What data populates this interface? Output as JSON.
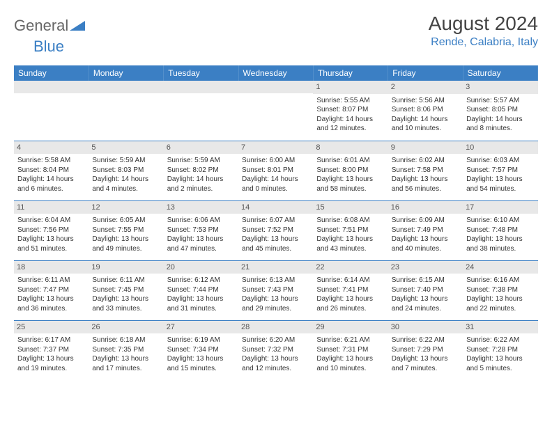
{
  "logo": {
    "part1": "General",
    "part2": "Blue"
  },
  "title": "August 2024",
  "location": "Rende, Calabria, Italy",
  "colors": {
    "header_bg": "#3b7fc4",
    "header_text": "#ffffff",
    "daynum_bg": "#e8e8e8",
    "border": "#3b7fc4",
    "logo_gray": "#666666",
    "logo_blue": "#3b7fc4"
  },
  "day_headers": [
    "Sunday",
    "Monday",
    "Tuesday",
    "Wednesday",
    "Thursday",
    "Friday",
    "Saturday"
  ],
  "weeks": [
    [
      {
        "n": "",
        "sr": "",
        "ss": "",
        "dl": ""
      },
      {
        "n": "",
        "sr": "",
        "ss": "",
        "dl": ""
      },
      {
        "n": "",
        "sr": "",
        "ss": "",
        "dl": ""
      },
      {
        "n": "",
        "sr": "",
        "ss": "",
        "dl": ""
      },
      {
        "n": "1",
        "sr": "Sunrise: 5:55 AM",
        "ss": "Sunset: 8:07 PM",
        "dl": "Daylight: 14 hours and 12 minutes."
      },
      {
        "n": "2",
        "sr": "Sunrise: 5:56 AM",
        "ss": "Sunset: 8:06 PM",
        "dl": "Daylight: 14 hours and 10 minutes."
      },
      {
        "n": "3",
        "sr": "Sunrise: 5:57 AM",
        "ss": "Sunset: 8:05 PM",
        "dl": "Daylight: 14 hours and 8 minutes."
      }
    ],
    [
      {
        "n": "4",
        "sr": "Sunrise: 5:58 AM",
        "ss": "Sunset: 8:04 PM",
        "dl": "Daylight: 14 hours and 6 minutes."
      },
      {
        "n": "5",
        "sr": "Sunrise: 5:59 AM",
        "ss": "Sunset: 8:03 PM",
        "dl": "Daylight: 14 hours and 4 minutes."
      },
      {
        "n": "6",
        "sr": "Sunrise: 5:59 AM",
        "ss": "Sunset: 8:02 PM",
        "dl": "Daylight: 14 hours and 2 minutes."
      },
      {
        "n": "7",
        "sr": "Sunrise: 6:00 AM",
        "ss": "Sunset: 8:01 PM",
        "dl": "Daylight: 14 hours and 0 minutes."
      },
      {
        "n": "8",
        "sr": "Sunrise: 6:01 AM",
        "ss": "Sunset: 8:00 PM",
        "dl": "Daylight: 13 hours and 58 minutes."
      },
      {
        "n": "9",
        "sr": "Sunrise: 6:02 AM",
        "ss": "Sunset: 7:58 PM",
        "dl": "Daylight: 13 hours and 56 minutes."
      },
      {
        "n": "10",
        "sr": "Sunrise: 6:03 AM",
        "ss": "Sunset: 7:57 PM",
        "dl": "Daylight: 13 hours and 54 minutes."
      }
    ],
    [
      {
        "n": "11",
        "sr": "Sunrise: 6:04 AM",
        "ss": "Sunset: 7:56 PM",
        "dl": "Daylight: 13 hours and 51 minutes."
      },
      {
        "n": "12",
        "sr": "Sunrise: 6:05 AM",
        "ss": "Sunset: 7:55 PM",
        "dl": "Daylight: 13 hours and 49 minutes."
      },
      {
        "n": "13",
        "sr": "Sunrise: 6:06 AM",
        "ss": "Sunset: 7:53 PM",
        "dl": "Daylight: 13 hours and 47 minutes."
      },
      {
        "n": "14",
        "sr": "Sunrise: 6:07 AM",
        "ss": "Sunset: 7:52 PM",
        "dl": "Daylight: 13 hours and 45 minutes."
      },
      {
        "n": "15",
        "sr": "Sunrise: 6:08 AM",
        "ss": "Sunset: 7:51 PM",
        "dl": "Daylight: 13 hours and 43 minutes."
      },
      {
        "n": "16",
        "sr": "Sunrise: 6:09 AM",
        "ss": "Sunset: 7:49 PM",
        "dl": "Daylight: 13 hours and 40 minutes."
      },
      {
        "n": "17",
        "sr": "Sunrise: 6:10 AM",
        "ss": "Sunset: 7:48 PM",
        "dl": "Daylight: 13 hours and 38 minutes."
      }
    ],
    [
      {
        "n": "18",
        "sr": "Sunrise: 6:11 AM",
        "ss": "Sunset: 7:47 PM",
        "dl": "Daylight: 13 hours and 36 minutes."
      },
      {
        "n": "19",
        "sr": "Sunrise: 6:11 AM",
        "ss": "Sunset: 7:45 PM",
        "dl": "Daylight: 13 hours and 33 minutes."
      },
      {
        "n": "20",
        "sr": "Sunrise: 6:12 AM",
        "ss": "Sunset: 7:44 PM",
        "dl": "Daylight: 13 hours and 31 minutes."
      },
      {
        "n": "21",
        "sr": "Sunrise: 6:13 AM",
        "ss": "Sunset: 7:43 PM",
        "dl": "Daylight: 13 hours and 29 minutes."
      },
      {
        "n": "22",
        "sr": "Sunrise: 6:14 AM",
        "ss": "Sunset: 7:41 PM",
        "dl": "Daylight: 13 hours and 26 minutes."
      },
      {
        "n": "23",
        "sr": "Sunrise: 6:15 AM",
        "ss": "Sunset: 7:40 PM",
        "dl": "Daylight: 13 hours and 24 minutes."
      },
      {
        "n": "24",
        "sr": "Sunrise: 6:16 AM",
        "ss": "Sunset: 7:38 PM",
        "dl": "Daylight: 13 hours and 22 minutes."
      }
    ],
    [
      {
        "n": "25",
        "sr": "Sunrise: 6:17 AM",
        "ss": "Sunset: 7:37 PM",
        "dl": "Daylight: 13 hours and 19 minutes."
      },
      {
        "n": "26",
        "sr": "Sunrise: 6:18 AM",
        "ss": "Sunset: 7:35 PM",
        "dl": "Daylight: 13 hours and 17 minutes."
      },
      {
        "n": "27",
        "sr": "Sunrise: 6:19 AM",
        "ss": "Sunset: 7:34 PM",
        "dl": "Daylight: 13 hours and 15 minutes."
      },
      {
        "n": "28",
        "sr": "Sunrise: 6:20 AM",
        "ss": "Sunset: 7:32 PM",
        "dl": "Daylight: 13 hours and 12 minutes."
      },
      {
        "n": "29",
        "sr": "Sunrise: 6:21 AM",
        "ss": "Sunset: 7:31 PM",
        "dl": "Daylight: 13 hours and 10 minutes."
      },
      {
        "n": "30",
        "sr": "Sunrise: 6:22 AM",
        "ss": "Sunset: 7:29 PM",
        "dl": "Daylight: 13 hours and 7 minutes."
      },
      {
        "n": "31",
        "sr": "Sunrise: 6:22 AM",
        "ss": "Sunset: 7:28 PM",
        "dl": "Daylight: 13 hours and 5 minutes."
      }
    ]
  ]
}
